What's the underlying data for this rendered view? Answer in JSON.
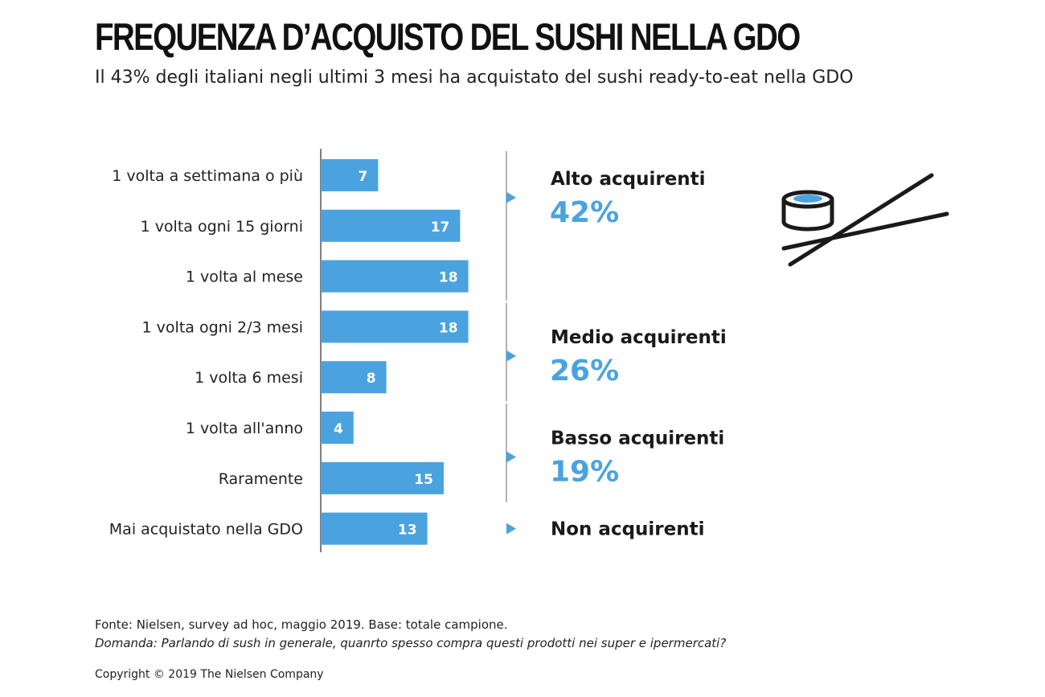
{
  "title": "FREQUENZA D’ACQUISTO DEL SUSHI NELLA GDO",
  "subtitle": "Il 43% degli italiani negli ultimi 3 mesi ha acquistato del sushi ready-to-eat nella GDO",
  "colors": {
    "bar": "#4aa3df",
    "accent_text": "#4aa3df",
    "axis": "#555555",
    "bracket": "#9a9a9a"
  },
  "chart_data": {
    "type": "bar",
    "orientation": "horizontal",
    "categories": [
      "1 volta a settimana o più",
      "1 volta ogni 15 giorni",
      "1 volta al mese",
      "1 volta ogni 2/3 mesi",
      "1 volta 6 mesi",
      "1 volta all'anno",
      "Raramente",
      "Mai acquistato nella GDO"
    ],
    "values": [
      7,
      17,
      18,
      18,
      8,
      4,
      15,
      13
    ],
    "value_labels": [
      "7",
      "17",
      "18",
      "18",
      "8",
      "4",
      "15",
      "13"
    ],
    "xlim": [
      0,
      18
    ],
    "grid": false,
    "groups": [
      {
        "name": "Alto acquirenti",
        "percent": "42%",
        "categories": [
          0,
          1,
          2
        ]
      },
      {
        "name": "Medio acquirenti",
        "percent": "26%",
        "categories": [
          3,
          4
        ]
      },
      {
        "name": "Basso acquirenti",
        "percent": "19%",
        "categories": [
          5,
          6
        ]
      },
      {
        "name": "Non acquirenti",
        "percent": "",
        "categories": [
          7
        ]
      }
    ]
  },
  "footer": {
    "source": "Fonte: Nielsen,  survey ad hoc,  maggio 2019.  Base:  totale campione.",
    "question": "Domanda:  Parlando  di sush in generale,  quanrto spesso compra questi prodotti nei super e ipermercati?",
    "copyright": "Copyright © 2019 The Nielsen Company"
  },
  "icons": [
    "sushi-roll-icon",
    "chopsticks-icon"
  ]
}
